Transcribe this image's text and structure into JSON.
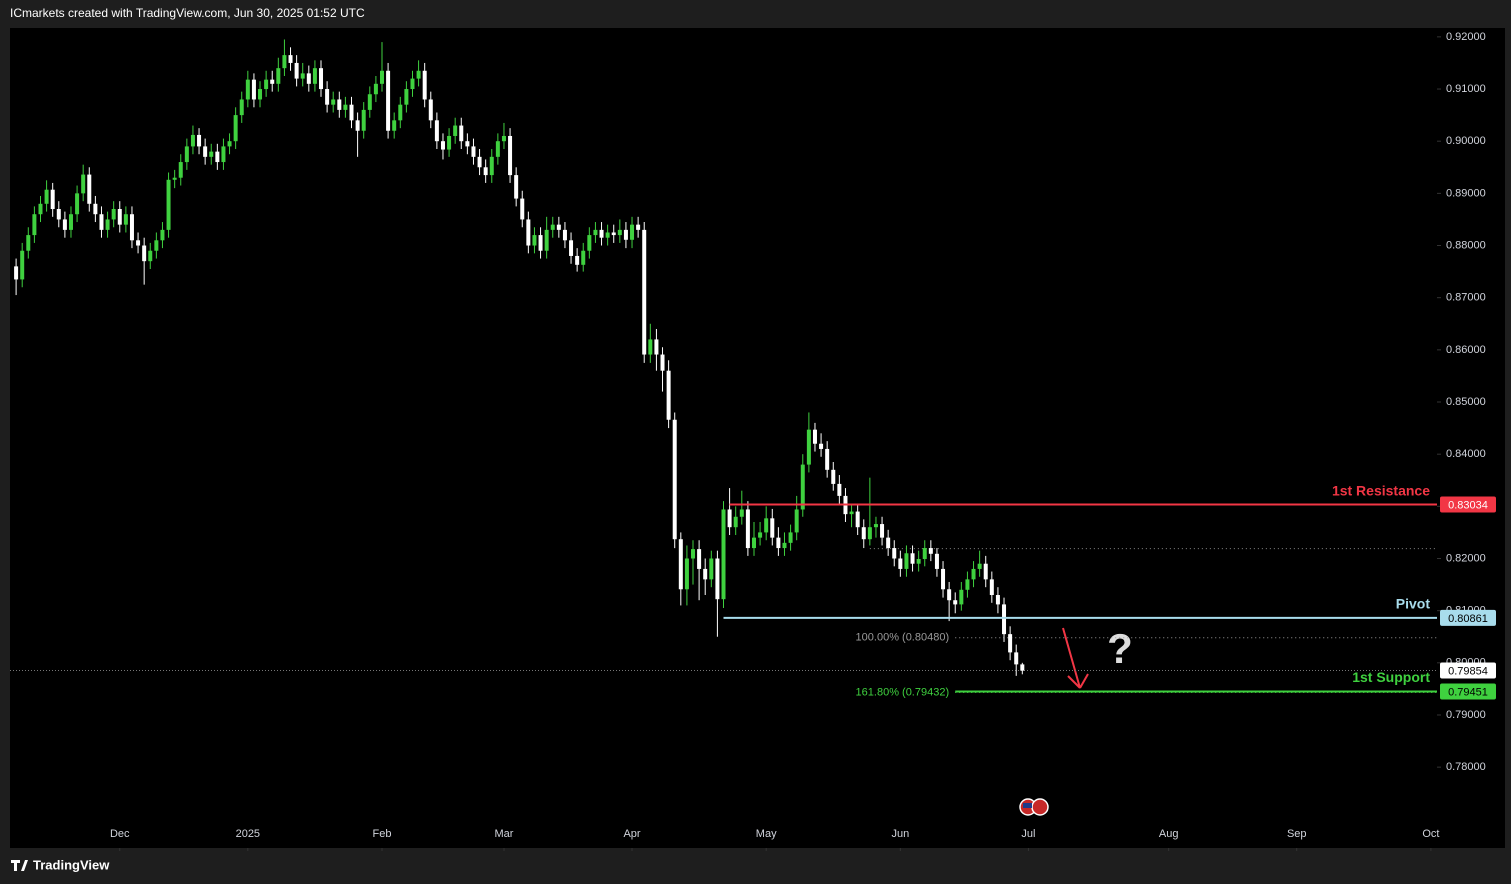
{
  "chart_data": {
    "type": "candlestick",
    "header": "ICmarkets created with TradingView.com, Jun 30, 2025 01:52 UTC",
    "footer": "TradingView",
    "up_color": "#3fd13f",
    "down_color": "#ffffff",
    "grid": false,
    "ylim": [
      0.7645,
      0.9217
    ],
    "yticks": [
      {
        "value": 0.78,
        "label": "0.78000"
      },
      {
        "value": 0.79,
        "label": "0.79000"
      },
      {
        "value": 0.8,
        "label": "0.80000"
      },
      {
        "value": 0.81,
        "label": "0.81000"
      },
      {
        "value": 0.82,
        "label": "0.82000"
      },
      {
        "value": 0.83,
        "label": "0.83000"
      },
      {
        "value": 0.84,
        "label": "0.84000"
      },
      {
        "value": 0.85,
        "label": "0.85000"
      },
      {
        "value": 0.86,
        "label": "0.86000"
      },
      {
        "value": 0.87,
        "label": "0.87000"
      },
      {
        "value": 0.88,
        "label": "0.88000"
      },
      {
        "value": 0.89,
        "label": "0.89000"
      },
      {
        "value": 0.9,
        "label": "0.90000"
      },
      {
        "value": 0.91,
        "label": "0.91000"
      },
      {
        "value": 0.92,
        "label": "0.92000"
      }
    ],
    "xlim": [
      -1,
      233
    ],
    "xticks": [
      {
        "value": 17,
        "label": "Dec"
      },
      {
        "value": 38,
        "label": "2025"
      },
      {
        "value": 60,
        "label": "Feb"
      },
      {
        "value": 80,
        "label": "Mar"
      },
      {
        "value": 101,
        "label": "Apr"
      },
      {
        "value": 123,
        "label": "May"
      },
      {
        "value": 145,
        "label": "Jun"
      },
      {
        "value": 166,
        "label": "Jul"
      },
      {
        "value": 189,
        "label": "Aug"
      },
      {
        "value": 210,
        "label": "Sep"
      },
      {
        "value": 232,
        "label": "Oct"
      }
    ],
    "open": [
      0.876,
      0.8735,
      0.879,
      0.882,
      0.886,
      0.888,
      0.8907,
      0.887,
      0.885,
      0.883,
      0.886,
      0.89,
      0.8936,
      0.888,
      0.886,
      0.883,
      0.885,
      0.887,
      0.884,
      0.886,
      0.881,
      0.88,
      0.877,
      0.879,
      0.881,
      0.883,
      0.8926,
      0.893,
      0.896,
      0.899,
      0.9012,
      0.899,
      0.897,
      0.898,
      0.896,
      0.899,
      0.9,
      0.905,
      0.908,
      0.9118,
      0.908,
      0.91,
      0.9118,
      0.911,
      0.914,
      0.9165,
      0.915,
      0.912,
      0.913,
      0.911,
      0.914,
      0.91,
      0.907,
      0.908,
      0.906,
      0.907,
      0.904,
      0.902,
      0.906,
      0.909,
      0.911,
      0.9135,
      0.902,
      0.904,
      0.907,
      0.91,
      0.912,
      0.9135,
      0.908,
      0.904,
      0.9,
      0.8984,
      0.901,
      0.903,
      0.9,
      0.899,
      0.897,
      0.895,
      0.8935,
      0.897,
      0.9,
      0.901,
      0.8935,
      0.889,
      0.885,
      0.88,
      0.882,
      0.879,
      0.883,
      0.884,
      0.883,
      0.881,
      0.878,
      0.8763,
      0.879,
      0.882,
      0.883,
      0.8815,
      0.8825,
      0.882,
      0.883,
      0.8811,
      0.884,
      0.883,
      0.8591,
      0.862,
      0.8591,
      0.856,
      0.8466,
      0.8237,
      0.8141,
      0.82,
      0.8218,
      0.818,
      0.816,
      0.82,
      0.8122,
      0.8294,
      0.826,
      0.828,
      0.8294,
      0.822,
      0.824,
      0.825,
      0.8277,
      0.824,
      0.822,
      0.823,
      0.825,
      0.8294,
      0.838,
      0.8447,
      0.842,
      0.841,
      0.837,
      0.8343,
      0.832,
      0.8285,
      0.829,
      0.826,
      0.8237,
      0.826,
      0.8266,
      0.824,
      0.822,
      0.82,
      0.818,
      0.821,
      0.819,
      0.8199,
      0.822,
      0.8209,
      0.818,
      0.8141,
      0.812,
      0.8112,
      0.814,
      0.816,
      0.818,
      0.819,
      0.816,
      0.813,
      0.8112,
      0.8055,
      0.802,
      0.7997
    ],
    "high": [
      0.8775,
      0.8805,
      0.8835,
      0.8875,
      0.8895,
      0.8925,
      0.892,
      0.8885,
      0.8865,
      0.8875,
      0.8915,
      0.8955,
      0.895,
      0.8895,
      0.8875,
      0.8865,
      0.8885,
      0.8885,
      0.8875,
      0.8875,
      0.8825,
      0.8815,
      0.8805,
      0.8825,
      0.8845,
      0.894,
      0.8945,
      0.8975,
      0.9005,
      0.903,
      0.9025,
      0.9005,
      0.8995,
      0.8995,
      0.9005,
      0.9015,
      0.9065,
      0.9095,
      0.9135,
      0.913,
      0.9115,
      0.9135,
      0.9135,
      0.916,
      0.9195,
      0.918,
      0.9165,
      0.915,
      0.9145,
      0.9155,
      0.9155,
      0.9115,
      0.9095,
      0.9095,
      0.9085,
      0.9085,
      0.9055,
      0.9075,
      0.9105,
      0.9125,
      0.919,
      0.915,
      0.9055,
      0.9085,
      0.9115,
      0.9135,
      0.9155,
      0.915,
      0.9095,
      0.9055,
      0.9015,
      0.9025,
      0.9045,
      0.9045,
      0.9015,
      0.9005,
      0.8985,
      0.8965,
      0.8985,
      0.9015,
      0.9035,
      0.9025,
      0.895,
      0.8905,
      0.8865,
      0.8835,
      0.8835,
      0.8855,
      0.8855,
      0.8855,
      0.8845,
      0.8825,
      0.8795,
      0.8805,
      0.8835,
      0.8845,
      0.8845,
      0.884,
      0.884,
      0.885,
      0.8845,
      0.8855,
      0.8855,
      0.8845,
      0.865,
      0.864,
      0.8605,
      0.858,
      0.848,
      0.825,
      0.8225,
      0.8235,
      0.8235,
      0.82,
      0.8215,
      0.8215,
      0.831,
      0.8335,
      0.83,
      0.833,
      0.831,
      0.827,
      0.827,
      0.83,
      0.8295,
      0.826,
      0.825,
      0.8265,
      0.832,
      0.84,
      0.848,
      0.846,
      0.844,
      0.8425,
      0.8385,
      0.836,
      0.8335,
      0.8305,
      0.8305,
      0.8275,
      0.8355,
      0.828,
      0.828,
      0.8255,
      0.8235,
      0.8215,
      0.8225,
      0.8225,
      0.8215,
      0.8235,
      0.8235,
      0.822,
      0.8195,
      0.8155,
      0.8135,
      0.8155,
      0.8175,
      0.8195,
      0.8215,
      0.8205,
      0.8175,
      0.8145,
      0.8125,
      0.807,
      0.8035,
      0.8
    ],
    "low": [
      0.8705,
      0.872,
      0.8775,
      0.8805,
      0.8845,
      0.8865,
      0.8855,
      0.8835,
      0.8815,
      0.8815,
      0.8845,
      0.8885,
      0.8865,
      0.8845,
      0.8815,
      0.8815,
      0.8835,
      0.8825,
      0.8825,
      0.8795,
      0.8785,
      0.8725,
      0.8755,
      0.8775,
      0.8795,
      0.8815,
      0.891,
      0.8915,
      0.8945,
      0.8975,
      0.8975,
      0.8955,
      0.8955,
      0.8945,
      0.8945,
      0.8975,
      0.8985,
      0.9035,
      0.9065,
      0.9065,
      0.9065,
      0.9085,
      0.9095,
      0.9095,
      0.9125,
      0.9135,
      0.9105,
      0.9105,
      0.9095,
      0.9095,
      0.9085,
      0.9055,
      0.9055,
      0.9045,
      0.9045,
      0.9025,
      0.897,
      0.9005,
      0.9045,
      0.9075,
      0.9095,
      0.9005,
      0.9005,
      0.9025,
      0.9055,
      0.9085,
      0.9105,
      0.9065,
      0.9025,
      0.8985,
      0.8965,
      0.897,
      0.8995,
      0.8985,
      0.8975,
      0.8955,
      0.8935,
      0.892,
      0.892,
      0.8955,
      0.8985,
      0.892,
      0.8875,
      0.8835,
      0.8785,
      0.8785,
      0.8775,
      0.8775,
      0.8815,
      0.8815,
      0.8795,
      0.8765,
      0.875,
      0.875,
      0.8775,
      0.8805,
      0.88,
      0.88,
      0.8805,
      0.8805,
      0.8795,
      0.8795,
      0.8815,
      0.8575,
      0.8575,
      0.856,
      0.852,
      0.845,
      0.822,
      0.811,
      0.811,
      0.815,
      0.812,
      0.813,
      0.8145,
      0.805,
      0.8105,
      0.8245,
      0.8245,
      0.8265,
      0.8205,
      0.8205,
      0.8225,
      0.8235,
      0.8225,
      0.8205,
      0.8205,
      0.8215,
      0.8235,
      0.828,
      0.8365,
      0.8405,
      0.8395,
      0.8355,
      0.833,
      0.8305,
      0.827,
      0.826,
      0.8245,
      0.822,
      0.8225,
      0.824,
      0.8225,
      0.8205,
      0.8185,
      0.8165,
      0.8165,
      0.8175,
      0.8175,
      0.8185,
      0.8195,
      0.8165,
      0.8125,
      0.808,
      0.8095,
      0.81,
      0.8125,
      0.8145,
      0.8165,
      0.8145,
      0.8115,
      0.8095,
      0.804,
      0.8005,
      0.7975,
      0.7978
    ],
    "close": [
      0.8735,
      0.879,
      0.882,
      0.886,
      0.888,
      0.8907,
      0.887,
      0.885,
      0.883,
      0.886,
      0.89,
      0.8936,
      0.888,
      0.886,
      0.883,
      0.885,
      0.887,
      0.884,
      0.886,
      0.881,
      0.88,
      0.877,
      0.879,
      0.881,
      0.883,
      0.8926,
      0.893,
      0.896,
      0.899,
      0.9012,
      0.899,
      0.897,
      0.898,
      0.896,
      0.899,
      0.9,
      0.905,
      0.908,
      0.9118,
      0.908,
      0.91,
      0.9118,
      0.911,
      0.914,
      0.9165,
      0.915,
      0.912,
      0.913,
      0.911,
      0.914,
      0.91,
      0.907,
      0.908,
      0.906,
      0.907,
      0.904,
      0.902,
      0.906,
      0.909,
      0.911,
      0.9135,
      0.902,
      0.904,
      0.907,
      0.91,
      0.912,
      0.9135,
      0.908,
      0.904,
      0.9,
      0.8984,
      0.901,
      0.903,
      0.9,
      0.899,
      0.897,
      0.895,
      0.8935,
      0.897,
      0.9,
      0.901,
      0.8935,
      0.889,
      0.885,
      0.88,
      0.882,
      0.879,
      0.883,
      0.884,
      0.883,
      0.881,
      0.878,
      0.8763,
      0.879,
      0.882,
      0.883,
      0.8815,
      0.8825,
      0.882,
      0.883,
      0.8811,
      0.884,
      0.883,
      0.8591,
      0.862,
      0.8591,
      0.856,
      0.8466,
      0.8237,
      0.8141,
      0.82,
      0.8218,
      0.818,
      0.816,
      0.82,
      0.8122,
      0.8294,
      0.826,
      0.828,
      0.8294,
      0.822,
      0.824,
      0.825,
      0.8277,
      0.824,
      0.822,
      0.823,
      0.825,
      0.8294,
      0.838,
      0.8447,
      0.842,
      0.841,
      0.837,
      0.8343,
      0.832,
      0.8285,
      0.829,
      0.826,
      0.8237,
      0.826,
      0.8266,
      0.824,
      0.822,
      0.82,
      0.818,
      0.821,
      0.819,
      0.8199,
      0.822,
      0.8209,
      0.818,
      0.8141,
      0.812,
      0.8112,
      0.814,
      0.816,
      0.818,
      0.819,
      0.816,
      0.813,
      0.8112,
      0.8055,
      0.802,
      0.7997,
      0.7985
    ],
    "levels": [
      {
        "name": "1st Resistance",
        "value": 0.83034,
        "color": "#f23645",
        "text_color": "#ffffff"
      },
      {
        "name": "Pivot",
        "value": 0.80861,
        "color": "#a8dcec",
        "text_color": "#000000"
      },
      {
        "name": "1st Support",
        "value": 0.79451,
        "color": "#3fd13f",
        "text_color": "#000000"
      }
    ],
    "fib_levels": [
      {
        "value": 0.8048,
        "label": "100.00% (0.80480)",
        "color": "#9a9a9a"
      },
      {
        "value": 0.79432,
        "label": "161.80% (0.79432)",
        "color": "#3fd13f"
      }
    ],
    "dotted_levels": [
      0.8219
    ],
    "last_price": 0.79854,
    "annotation": "?"
  }
}
